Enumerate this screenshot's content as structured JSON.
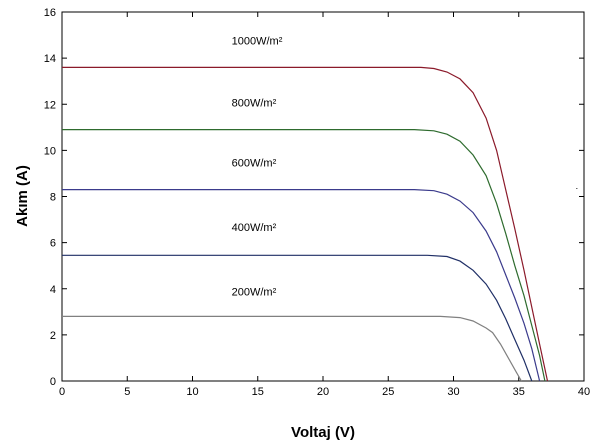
{
  "chart_data": {
    "type": "line",
    "title": "",
    "xlabel": "Voltaj (V)",
    "ylabel": "Akım (A)",
    "xlim": [
      0,
      40
    ],
    "ylim": [
      0,
      16
    ],
    "xticks": [
      0,
      5,
      10,
      15,
      20,
      25,
      30,
      35,
      40
    ],
    "yticks": [
      0,
      2,
      4,
      6,
      8,
      10,
      12,
      14,
      16
    ],
    "grid": false,
    "legend": "none",
    "series": [
      {
        "name": "1000W/m²",
        "color": "#8b1a2a",
        "label_at": [
          13,
          14.6
        ],
        "points": [
          [
            0,
            13.6
          ],
          [
            5,
            13.6
          ],
          [
            10,
            13.6
          ],
          [
            15,
            13.6
          ],
          [
            20,
            13.6
          ],
          [
            25,
            13.6
          ],
          [
            26.5,
            13.6
          ],
          [
            27.5,
            13.6
          ],
          [
            28.5,
            13.55
          ],
          [
            29.5,
            13.4
          ],
          [
            30.5,
            13.1
          ],
          [
            31.5,
            12.5
          ],
          [
            32.5,
            11.4
          ],
          [
            33.3,
            10.0
          ],
          [
            34.0,
            8.3
          ],
          [
            34.7,
            6.6
          ],
          [
            35.4,
            4.8
          ],
          [
            36.0,
            3.2
          ],
          [
            36.6,
            1.6
          ],
          [
            37.2,
            0
          ]
        ]
      },
      {
        "name": "800W/m²",
        "color": "#2e6b2e",
        "label_at": [
          13,
          11.9
        ],
        "points": [
          [
            0,
            10.9
          ],
          [
            5,
            10.9
          ],
          [
            10,
            10.9
          ],
          [
            15,
            10.9
          ],
          [
            20,
            10.9
          ],
          [
            25,
            10.9
          ],
          [
            27,
            10.9
          ],
          [
            28.5,
            10.85
          ],
          [
            29.5,
            10.7
          ],
          [
            30.5,
            10.4
          ],
          [
            31.5,
            9.8
          ],
          [
            32.5,
            8.9
          ],
          [
            33.3,
            7.7
          ],
          [
            34.0,
            6.4
          ],
          [
            34.7,
            5.0
          ],
          [
            35.4,
            3.7
          ],
          [
            36.0,
            2.4
          ],
          [
            36.6,
            1.1
          ],
          [
            37.0,
            0
          ]
        ]
      },
      {
        "name": "600W/m²",
        "color": "#3b3b8c",
        "label_at": [
          13,
          9.3
        ],
        "points": [
          [
            0,
            8.3
          ],
          [
            5,
            8.3
          ],
          [
            10,
            8.3
          ],
          [
            15,
            8.3
          ],
          [
            20,
            8.3
          ],
          [
            25,
            8.3
          ],
          [
            27,
            8.3
          ],
          [
            28.5,
            8.25
          ],
          [
            29.5,
            8.1
          ],
          [
            30.5,
            7.8
          ],
          [
            31.5,
            7.3
          ],
          [
            32.5,
            6.5
          ],
          [
            33.3,
            5.6
          ],
          [
            34.0,
            4.6
          ],
          [
            34.7,
            3.6
          ],
          [
            35.4,
            2.5
          ],
          [
            36.0,
            1.4
          ],
          [
            36.6,
            0
          ]
        ]
      },
      {
        "name": "400W/m²",
        "color": "#1f2f66",
        "label_at": [
          13,
          6.5
        ],
        "points": [
          [
            0,
            5.45
          ],
          [
            5,
            5.45
          ],
          [
            10,
            5.45
          ],
          [
            15,
            5.45
          ],
          [
            20,
            5.45
          ],
          [
            25,
            5.45
          ],
          [
            28,
            5.45
          ],
          [
            29.5,
            5.4
          ],
          [
            30.5,
            5.2
          ],
          [
            31.5,
            4.8
          ],
          [
            32.5,
            4.2
          ],
          [
            33.3,
            3.5
          ],
          [
            34.0,
            2.7
          ],
          [
            34.7,
            1.8
          ],
          [
            35.4,
            0.9
          ],
          [
            36.0,
            0
          ]
        ]
      },
      {
        "name": "200W/m²",
        "color": "#808080",
        "label_at": [
          13,
          3.7
        ],
        "points": [
          [
            0,
            2.8
          ],
          [
            5,
            2.8
          ],
          [
            10,
            2.8
          ],
          [
            15,
            2.8
          ],
          [
            20,
            2.8
          ],
          [
            25,
            2.8
          ],
          [
            29,
            2.8
          ],
          [
            30.5,
            2.75
          ],
          [
            31.5,
            2.6
          ],
          [
            32.5,
            2.3
          ],
          [
            33.0,
            2.1
          ],
          [
            33.6,
            1.6
          ],
          [
            34.2,
            1.0
          ],
          [
            34.8,
            0.4
          ],
          [
            35.2,
            0
          ]
        ]
      }
    ]
  }
}
